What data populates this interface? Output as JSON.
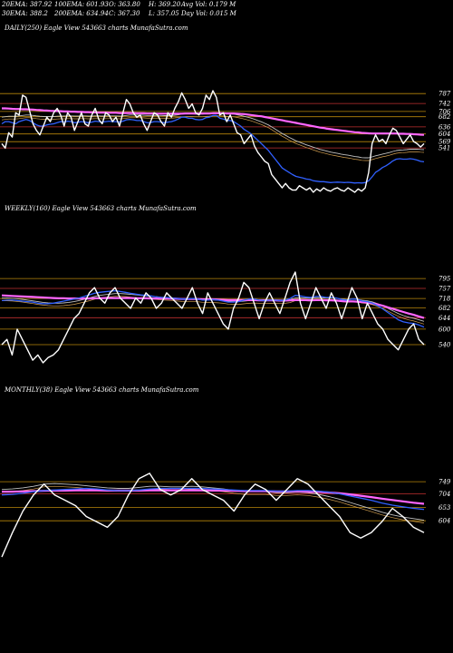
{
  "header": {
    "row1": [
      "20EMA: 387.92",
      "100EMA: 601.93",
      "O: 363.80",
      "H: 369.20",
      "Avg Vol: 0.179 M"
    ],
    "row2": [
      "30EMA: 388.2",
      "200EMA: 634.94",
      "C: 367.30",
      "L: 357.05",
      "Day Vol: 0.015 M"
    ]
  },
  "panels": {
    "daily": {
      "title": "DAILY(250) Eagle  View  543663 charts MunafaSutra.com"
    },
    "weekly": {
      "title": "WEEKLY(160) Eagle  View  543663 charts MunafaSutra.com"
    },
    "monthly": {
      "title": "MONTHLY(38) Eagle  View  543663 charts MunafaSutra.com"
    }
  },
  "colors": {
    "background": "#000000",
    "price": "#ffffff",
    "ema_short": "#3060ff",
    "ema_long": "#ff66ff",
    "ema_mid": "#c0c0c0",
    "level_line": "#b8860b",
    "level_line_red": "#c03030"
  },
  "chart_data": [
    {
      "type": "line",
      "title": "DAILY(250) Eagle  View  543663 charts MunafaSutra.com",
      "ylim": [
        340,
        800
      ],
      "levels": [
        787,
        742,
        706,
        682,
        636,
        604,
        569,
        541
      ],
      "series": [
        {
          "key": "price",
          "values": [
            560,
            540,
            610,
            590,
            700,
            690,
            780,
            770,
            710,
            650,
            620,
            600,
            640,
            680,
            660,
            700,
            720,
            690,
            640,
            700,
            680,
            620,
            660,
            700,
            650,
            640,
            690,
            720,
            670,
            650,
            700,
            690,
            660,
            680,
            640,
            700,
            760,
            740,
            700,
            680,
            690,
            650,
            620,
            660,
            700,
            690,
            660,
            640,
            700,
            680,
            720,
            750,
            790,
            760,
            720,
            740,
            700,
            690,
            720,
            780,
            760,
            800,
            770,
            690,
            700,
            660,
            690,
            650,
            610,
            600,
            560,
            580,
            600,
            550,
            520,
            500,
            480,
            470,
            420,
            400,
            380,
            360,
            380,
            360,
            350,
            350,
            370,
            360,
            350,
            360,
            340,
            355,
            345,
            360,
            350,
            345,
            355,
            360,
            350,
            345,
            360,
            350,
            340,
            355,
            345,
            360,
            430,
            560,
            600,
            570,
            580,
            560,
            600,
            630,
            620,
            590,
            560,
            580,
            600,
            570,
            560,
            545,
            560
          ]
        },
        {
          "key": "ema_short",
          "values": [
            650,
            660,
            660,
            655,
            650,
            660,
            665,
            670,
            665,
            655,
            645,
            640,
            640,
            645,
            648,
            650,
            655,
            660,
            658,
            662,
            660,
            655,
            657,
            660,
            658,
            655,
            658,
            662,
            660,
            658,
            660,
            662,
            660,
            660,
            658,
            662,
            668,
            670,
            668,
            665,
            665,
            660,
            655,
            656,
            660,
            660,
            658,
            655,
            658,
            660,
            665,
            672,
            680,
            680,
            675,
            675,
            670,
            668,
            670,
            678,
            680,
            688,
            688,
            675,
            672,
            665,
            665,
            660,
            650,
            640,
            625,
            615,
            605,
            590,
            575,
            560,
            545,
            530,
            510,
            490,
            470,
            450,
            440,
            430,
            420,
            412,
            408,
            405,
            400,
            398,
            392,
            390,
            388,
            388,
            386,
            384,
            385,
            386,
            385,
            384,
            385,
            384,
            382,
            383,
            382,
            384,
            392,
            410,
            430,
            440,
            452,
            460,
            470,
            482,
            490,
            492,
            490,
            490,
            492,
            490,
            486,
            480,
            478
          ]
        },
        {
          "key": "ema_mid",
          "values": [
            680,
            682,
            684,
            684,
            684,
            686,
            688,
            690,
            690,
            688,
            686,
            684,
            683,
            683,
            683,
            683,
            684,
            685,
            685,
            686,
            686,
            685,
            685,
            686,
            686,
            685,
            685,
            686,
            686,
            685,
            686,
            686,
            686,
            686,
            685,
            686,
            688,
            690,
            690,
            690,
            690,
            689,
            688,
            688,
            688,
            688,
            688,
            687,
            687,
            688,
            689,
            691,
            694,
            695,
            695,
            695,
            694,
            694,
            694,
            696,
            697,
            700,
            700,
            698,
            698,
            696,
            695,
            694,
            691,
            688,
            684,
            680,
            676,
            671,
            665,
            659,
            652,
            645,
            636,
            626,
            616,
            606,
            598,
            589,
            581,
            573,
            567,
            561,
            555,
            550,
            544,
            539,
            534,
            530,
            526,
            522,
            519,
            516,
            513,
            510,
            508,
            505,
            502,
            500,
            497,
            496,
            496,
            500,
            505,
            509,
            513,
            516,
            520,
            525,
            529,
            531,
            532,
            533,
            535,
            535,
            535,
            534,
            533
          ]
        },
        {
          "key": "ema_long",
          "values": [
            720,
            720,
            719,
            718,
            717,
            717,
            716,
            716,
            715,
            714,
            713,
            712,
            711,
            710,
            709,
            708,
            708,
            707,
            706,
            706,
            705,
            705,
            704,
            704,
            703,
            703,
            702,
            702,
            701,
            701,
            701,
            700,
            700,
            700,
            699,
            699,
            699,
            699,
            699,
            698,
            698,
            698,
            697,
            697,
            697,
            696,
            696,
            696,
            696,
            696,
            696,
            696,
            696,
            697,
            697,
            697,
            697,
            697,
            697,
            697,
            697,
            698,
            698,
            698,
            698,
            697,
            697,
            697,
            696,
            695,
            694,
            692,
            690,
            688,
            686,
            684,
            681,
            678,
            675,
            672,
            669,
            666,
            663,
            660,
            657,
            654,
            651,
            648,
            645,
            642,
            639,
            636,
            633,
            631,
            628,
            626,
            624,
            622,
            620,
            618,
            616,
            614,
            612,
            611,
            609,
            608,
            607,
            606,
            606,
            606,
            606,
            606,
            606,
            606,
            606,
            605,
            605,
            604,
            604,
            603,
            602,
            601,
            600
          ]
        }
      ]
    },
    {
      "type": "line",
      "title": "WEEKLY(160) Eagle  View  543663 charts MunafaSutra.com",
      "ylim": [
        470,
        820
      ],
      "levels": [
        795,
        757,
        718,
        682,
        644,
        600,
        540
      ],
      "series": [
        {
          "key": "price",
          "values": [
            540,
            560,
            500,
            600,
            560,
            520,
            480,
            500,
            470,
            490,
            500,
            520,
            560,
            600,
            640,
            660,
            700,
            740,
            760,
            720,
            700,
            740,
            760,
            720,
            700,
            680,
            720,
            700,
            740,
            720,
            680,
            700,
            740,
            720,
            700,
            680,
            720,
            760,
            700,
            660,
            740,
            700,
            660,
            620,
            600,
            680,
            720,
            780,
            760,
            700,
            640,
            700,
            740,
            700,
            660,
            720,
            780,
            820,
            700,
            640,
            700,
            760,
            720,
            680,
            740,
            700,
            640,
            700,
            760,
            720,
            640,
            700,
            660,
            620,
            600,
            560,
            540,
            520,
            560,
            600,
            620,
            560,
            540
          ]
        },
        {
          "key": "ema_short",
          "values": [
            710,
            712,
            712,
            710,
            708,
            706,
            704,
            700,
            698,
            698,
            700,
            704,
            708,
            712,
            716,
            720,
            726,
            732,
            738,
            742,
            744,
            746,
            748,
            745,
            742,
            738,
            735,
            732,
            730,
            728,
            724,
            722,
            722,
            720,
            718,
            716,
            716,
            718,
            716,
            712,
            712,
            714,
            712,
            708,
            704,
            704,
            706,
            712,
            716,
            716,
            712,
            710,
            712,
            712,
            710,
            712,
            718,
            730,
            728,
            724,
            722,
            726,
            726,
            722,
            722,
            720,
            714,
            712,
            716,
            716,
            708,
            706,
            700,
            690,
            678,
            664,
            650,
            636,
            628,
            624,
            622,
            616,
            608
          ]
        },
        {
          "key": "ema_long",
          "values": [
            730,
            729,
            728,
            727,
            726,
            725,
            724,
            723,
            722,
            721,
            720,
            719,
            719,
            718,
            718,
            718,
            718,
            718,
            719,
            719,
            720,
            720,
            720,
            720,
            720,
            720,
            719,
            719,
            719,
            718,
            718,
            718,
            718,
            717,
            717,
            716,
            716,
            716,
            716,
            715,
            715,
            715,
            714,
            713,
            712,
            712,
            712,
            712,
            712,
            712,
            711,
            711,
            711,
            711,
            710,
            710,
            711,
            712,
            712,
            712,
            711,
            712,
            712,
            711,
            711,
            710,
            708,
            707,
            707,
            706,
            704,
            702,
            699,
            695,
            690,
            684,
            678,
            672,
            666,
            660,
            655,
            649,
            643
          ]
        },
        {
          "key": "ema_mid",
          "values": [
            720,
            720,
            719,
            717,
            715,
            712,
            709,
            706,
            703,
            701,
            700,
            700,
            701,
            703,
            706,
            710,
            715,
            720,
            726,
            730,
            733,
            735,
            737,
            737,
            736,
            734,
            732,
            730,
            728,
            727,
            725,
            723,
            722,
            721,
            719,
            717,
            716,
            716,
            716,
            714,
            713,
            713,
            712,
            710,
            707,
            706,
            706,
            708,
            710,
            711,
            710,
            709,
            710,
            710,
            709,
            710,
            713,
            720,
            721,
            720,
            719,
            721,
            721,
            720,
            720,
            719,
            716,
            714,
            715,
            715,
            711,
            709,
            705,
            698,
            690,
            680,
            670,
            660,
            652,
            646,
            642,
            636,
            630
          ]
        }
      ]
    },
    {
      "type": "line",
      "title": "MONTHLY(38) Eagle  View  543663 charts MunafaSutra.com",
      "ylim": [
        450,
        820
      ],
      "levels": [
        749,
        704,
        653,
        604
      ],
      "series": [
        {
          "key": "price",
          "values": [
            470,
            560,
            640,
            700,
            740,
            700,
            680,
            660,
            620,
            600,
            580,
            620,
            700,
            760,
            780,
            720,
            700,
            720,
            760,
            720,
            700,
            680,
            640,
            700,
            740,
            720,
            680,
            720,
            760,
            740,
            700,
            660,
            620,
            560,
            540,
            560,
            600,
            650,
            620,
            580,
            560
          ]
        },
        {
          "key": "ema_short",
          "values": [
            700,
            702,
            706,
            712,
            716,
            718,
            720,
            722,
            724,
            722,
            718,
            716,
            716,
            718,
            722,
            724,
            724,
            724,
            724,
            724,
            722,
            720,
            718,
            716,
            716,
            716,
            714,
            714,
            716,
            716,
            714,
            710,
            704,
            696,
            688,
            680,
            670,
            662,
            656,
            650,
            646
          ]
        },
        {
          "key": "ema_mid",
          "values": [
            720,
            722,
            726,
            732,
            740,
            742,
            740,
            738,
            734,
            730,
            726,
            724,
            724,
            728,
            732,
            732,
            730,
            730,
            732,
            730,
            726,
            722,
            716,
            712,
            712,
            712,
            708,
            708,
            710,
            708,
            702,
            694,
            684,
            672,
            660,
            648,
            636,
            626,
            618,
            612,
            606
          ]
        },
        {
          "key": "ema_long",
          "values": [
            712,
            712,
            713,
            714,
            715,
            716,
            716,
            717,
            717,
            717,
            716,
            716,
            716,
            716,
            717,
            717,
            717,
            717,
            717,
            717,
            716,
            716,
            715,
            714,
            714,
            714,
            713,
            713,
            713,
            712,
            711,
            709,
            706,
            702,
            697,
            692,
            686,
            681,
            676,
            671,
            667
          ]
        }
      ]
    }
  ]
}
